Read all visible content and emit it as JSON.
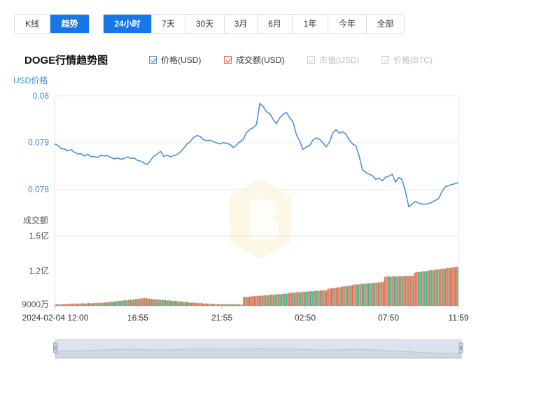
{
  "view_toggle": {
    "items": [
      "K线",
      "趋势"
    ],
    "active": 1
  },
  "period": {
    "items": [
      "24小时",
      "7天",
      "30天",
      "3月",
      "6月",
      "1年",
      "今年",
      "全部"
    ],
    "active": 0
  },
  "chart_title": "DOGE行情趋势图",
  "legend": [
    {
      "label": "价格(USD)",
      "checked": true,
      "color": "#4a90e2"
    },
    {
      "label": "成交额(USD)",
      "checked": true,
      "color": "#f06a4b"
    },
    {
      "label": "市值(USD)",
      "checked": false,
      "color": "#cccccc"
    },
    {
      "label": "价格(BTC)",
      "checked": false,
      "color": "#cccccc"
    }
  ],
  "chart_data": {
    "type": "line",
    "title": "DOGE行情趋势图",
    "price_axis": {
      "label": "USD价格",
      "ticks": [
        "0.08",
        "0.079",
        "0.078"
      ],
      "range": [
        0.077,
        0.08
      ]
    },
    "volume_axis": {
      "label": "成交额",
      "ticks": [
        "1.5亿",
        "1.2亿",
        "9000万"
      ],
      "range_yi": [
        0.9,
        1.5
      ]
    },
    "x_tick_labels": [
      "2024-02-04 12:00",
      "16:55",
      "21:55",
      "02:50",
      "07:50",
      "11:59"
    ],
    "price_series": {
      "name": "价格(USD)",
      "color": "#4a90e2",
      "values": [
        0.07897,
        0.07894,
        0.07887,
        0.07886,
        0.07882,
        0.07885,
        0.07879,
        0.07876,
        0.07876,
        0.07871,
        0.07875,
        0.0787,
        0.0787,
        0.07868,
        0.07873,
        0.07871,
        0.07872,
        0.07868,
        0.07865,
        0.07867,
        0.07864,
        0.07866,
        0.07869,
        0.07866,
        0.07867,
        0.07862,
        0.0786,
        0.07856,
        0.07853,
        0.07862,
        0.07871,
        0.07875,
        0.07881,
        0.0787,
        0.07873,
        0.07869,
        0.07872,
        0.07874,
        0.0788,
        0.07888,
        0.07897,
        0.07902,
        0.07911,
        0.07915,
        0.07913,
        0.07906,
        0.07904,
        0.07905,
        0.07902,
        0.07899,
        0.07897,
        0.079,
        0.07898,
        0.07896,
        0.07889,
        0.07895,
        0.07902,
        0.07907,
        0.07922,
        0.07928,
        0.07932,
        0.07939,
        0.07984,
        0.07977,
        0.07966,
        0.07962,
        0.0795,
        0.0794,
        0.07953,
        0.0796,
        0.07965,
        0.07953,
        0.07945,
        0.07917,
        0.07904,
        0.07885,
        0.0789,
        0.07893,
        0.07905,
        0.0791,
        0.07907,
        0.079,
        0.07891,
        0.079,
        0.0792,
        0.07928,
        0.0792,
        0.07923,
        0.07918,
        0.07906,
        0.07897,
        0.07893,
        0.07871,
        0.07842,
        0.07836,
        0.07832,
        0.07829,
        0.07821,
        0.07824,
        0.07818,
        0.07826,
        0.07828,
        0.07832,
        0.07815,
        0.07825,
        0.0782,
        0.07794,
        0.07762,
        0.07768,
        0.07774,
        0.0777,
        0.07768,
        0.07768,
        0.07769,
        0.07772,
        0.07776,
        0.0778,
        0.07795,
        0.07805,
        0.07808,
        0.0781,
        0.07812,
        0.07814
      ]
    },
    "volume_series": {
      "name": "成交额(USD)",
      "colors": {
        "up": "#f06a4b",
        "down": "#2bb58a"
      },
      "segments_yi": [
        {
          "bars": 38,
          "start": 0.912,
          "end": 0.926
        },
        {
          "bars": 37,
          "start": 0.926,
          "end": 0.968
        },
        {
          "bars": 35,
          "start": 0.962,
          "end": 0.93
        },
        {
          "bars": 20,
          "start": 0.928,
          "end": 0.915
        },
        {
          "bars": 22,
          "start": 0.915,
          "end": 0.913
        },
        {
          "bars": 36,
          "start": 0.975,
          "end": 1.005
        },
        {
          "bars": 32,
          "start": 1.01,
          "end": 1.035
        },
        {
          "bars": 20,
          "start": 1.045,
          "end": 1.075
        },
        {
          "bars": 26,
          "start": 1.08,
          "end": 1.105
        },
        {
          "bars": 24,
          "start": 1.15,
          "end": 1.158
        },
        {
          "bars": 36,
          "start": 1.185,
          "end": 1.235
        }
      ]
    }
  },
  "navigator": {
    "label": ""
  }
}
